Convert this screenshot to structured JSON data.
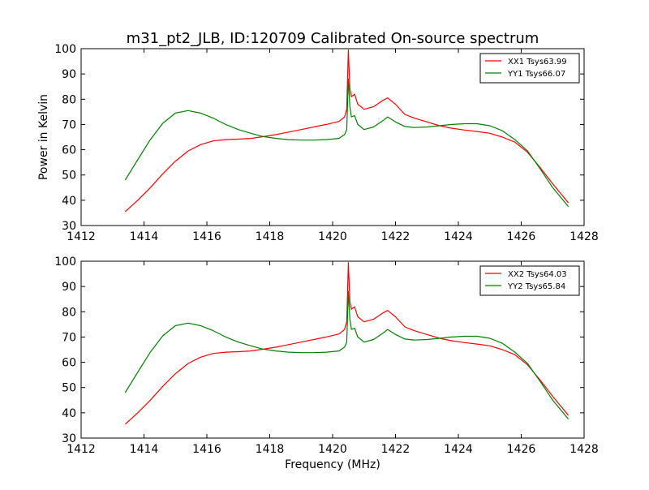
{
  "figure": {
    "title": "m31_pt2_JLB, ID:120709 Calibrated On-source spectrum",
    "xlabel": "Frequency (MHz)",
    "ylabel": "Power in Kelvin"
  },
  "colors": {
    "xx": "#ff0000",
    "yy": "#008000",
    "axes": "#000000"
  },
  "chart_data": [
    {
      "type": "line",
      "panel": "top",
      "xlim": [
        1412,
        1428
      ],
      "ylim": [
        30,
        100
      ],
      "xticks": [
        1412,
        1414,
        1416,
        1418,
        1420,
        1422,
        1424,
        1426,
        1428
      ],
      "yticks": [
        30,
        40,
        50,
        60,
        70,
        80,
        90,
        100
      ],
      "ylabel": "Power in Kelvin",
      "legend_position": "top-right",
      "grid": false,
      "series": [
        {
          "name": "XX1 Tsys63.99",
          "color": "#ff0000",
          "x": [
            1413.4,
            1413.8,
            1414.2,
            1414.6,
            1415.0,
            1415.4,
            1415.8,
            1416.2,
            1416.6,
            1417.0,
            1417.4,
            1417.8,
            1418.2,
            1418.6,
            1419.0,
            1419.4,
            1419.8,
            1420.2,
            1420.38,
            1420.45,
            1420.5,
            1420.55,
            1420.6,
            1420.7,
            1420.8,
            1421.0,
            1421.3,
            1421.6,
            1421.75,
            1422.0,
            1422.3,
            1422.6,
            1423.0,
            1423.4,
            1423.8,
            1424.2,
            1424.6,
            1425.0,
            1425.4,
            1425.8,
            1426.2,
            1426.6,
            1427.0,
            1427.5
          ],
          "y": [
            35.5,
            40.0,
            45.0,
            50.5,
            55.5,
            59.5,
            62.0,
            63.5,
            64.0,
            64.2,
            64.5,
            65.2,
            66.0,
            67.0,
            68.0,
            69.0,
            70.0,
            71.2,
            73.0,
            76.0,
            99.5,
            84.0,
            81.0,
            82.0,
            78.0,
            76.0,
            77.0,
            79.5,
            80.5,
            78.0,
            74.0,
            72.5,
            71.0,
            69.5,
            68.5,
            67.8,
            67.2,
            66.5,
            65.0,
            63.0,
            59.0,
            53.0,
            46.5,
            39.0
          ]
        },
        {
          "name": "YY1 Tsys66.07",
          "color": "#008000",
          "x": [
            1413.4,
            1413.8,
            1414.2,
            1414.6,
            1415.0,
            1415.4,
            1415.8,
            1416.2,
            1416.6,
            1417.0,
            1417.4,
            1417.8,
            1418.2,
            1418.6,
            1419.0,
            1419.4,
            1419.8,
            1420.2,
            1420.38,
            1420.45,
            1420.5,
            1420.55,
            1420.6,
            1420.7,
            1420.8,
            1421.0,
            1421.3,
            1421.6,
            1421.75,
            1422.0,
            1422.3,
            1422.6,
            1423.0,
            1423.4,
            1423.8,
            1424.2,
            1424.6,
            1425.0,
            1425.4,
            1425.8,
            1426.2,
            1426.6,
            1427.0,
            1427.5
          ],
          "y": [
            48.0,
            56.0,
            64.0,
            70.5,
            74.5,
            75.5,
            74.5,
            72.5,
            70.0,
            68.0,
            66.5,
            65.2,
            64.5,
            64.0,
            63.8,
            63.8,
            64.0,
            64.5,
            66.0,
            68.0,
            88.0,
            77.0,
            73.0,
            73.5,
            70.0,
            68.0,
            69.0,
            71.5,
            73.0,
            71.0,
            69.2,
            68.8,
            69.0,
            69.5,
            70.0,
            70.3,
            70.3,
            69.5,
            67.5,
            64.0,
            59.5,
            52.5,
            45.0,
            37.5
          ]
        }
      ]
    },
    {
      "type": "line",
      "panel": "bottom",
      "xlim": [
        1412,
        1428
      ],
      "ylim": [
        30,
        100
      ],
      "xticks": [
        1412,
        1414,
        1416,
        1418,
        1420,
        1422,
        1424,
        1426,
        1428
      ],
      "yticks": [
        30,
        40,
        50,
        60,
        70,
        80,
        90,
        100
      ],
      "xlabel": "Frequency (MHz)",
      "legend_position": "top-right",
      "grid": false,
      "series": [
        {
          "name": "XX2 Tsys64.03",
          "color": "#ff0000",
          "x": [
            1413.4,
            1413.8,
            1414.2,
            1414.6,
            1415.0,
            1415.4,
            1415.8,
            1416.2,
            1416.6,
            1417.0,
            1417.4,
            1417.8,
            1418.2,
            1418.6,
            1419.0,
            1419.4,
            1419.8,
            1420.2,
            1420.38,
            1420.45,
            1420.5,
            1420.55,
            1420.6,
            1420.7,
            1420.8,
            1421.0,
            1421.3,
            1421.6,
            1421.75,
            1422.0,
            1422.3,
            1422.6,
            1423.0,
            1423.4,
            1423.8,
            1424.2,
            1424.6,
            1425.0,
            1425.4,
            1425.8,
            1426.2,
            1426.6,
            1427.0,
            1427.5
          ],
          "y": [
            35.5,
            40.0,
            45.0,
            50.5,
            55.5,
            59.5,
            62.0,
            63.5,
            64.0,
            64.2,
            64.5,
            65.2,
            66.0,
            67.0,
            68.0,
            69.0,
            70.0,
            71.2,
            73.0,
            76.0,
            99.5,
            84.0,
            81.0,
            82.0,
            78.0,
            76.0,
            77.0,
            79.5,
            80.5,
            78.0,
            74.0,
            72.5,
            71.0,
            69.5,
            68.5,
            67.8,
            67.2,
            66.5,
            65.0,
            63.0,
            59.0,
            53.0,
            46.5,
            39.0
          ]
        },
        {
          "name": "YY2 Tsys65.84",
          "color": "#008000",
          "x": [
            1413.4,
            1413.8,
            1414.2,
            1414.6,
            1415.0,
            1415.4,
            1415.8,
            1416.2,
            1416.6,
            1417.0,
            1417.4,
            1417.8,
            1418.2,
            1418.6,
            1419.0,
            1419.4,
            1419.8,
            1420.2,
            1420.38,
            1420.45,
            1420.5,
            1420.55,
            1420.6,
            1420.7,
            1420.8,
            1421.0,
            1421.3,
            1421.6,
            1421.75,
            1422.0,
            1422.3,
            1422.6,
            1423.0,
            1423.4,
            1423.8,
            1424.2,
            1424.6,
            1425.0,
            1425.4,
            1425.8,
            1426.2,
            1426.6,
            1427.0,
            1427.5
          ],
          "y": [
            48.0,
            56.0,
            64.0,
            70.5,
            74.5,
            75.5,
            74.5,
            72.5,
            70.0,
            68.0,
            66.5,
            65.2,
            64.5,
            64.0,
            63.8,
            63.8,
            64.0,
            64.5,
            66.0,
            68.0,
            88.0,
            77.0,
            73.0,
            73.5,
            70.0,
            68.0,
            69.0,
            71.5,
            73.0,
            71.0,
            69.2,
            68.8,
            69.0,
            69.5,
            70.0,
            70.3,
            70.3,
            69.5,
            67.5,
            64.0,
            59.5,
            52.5,
            45.0,
            37.5
          ]
        }
      ]
    }
  ]
}
